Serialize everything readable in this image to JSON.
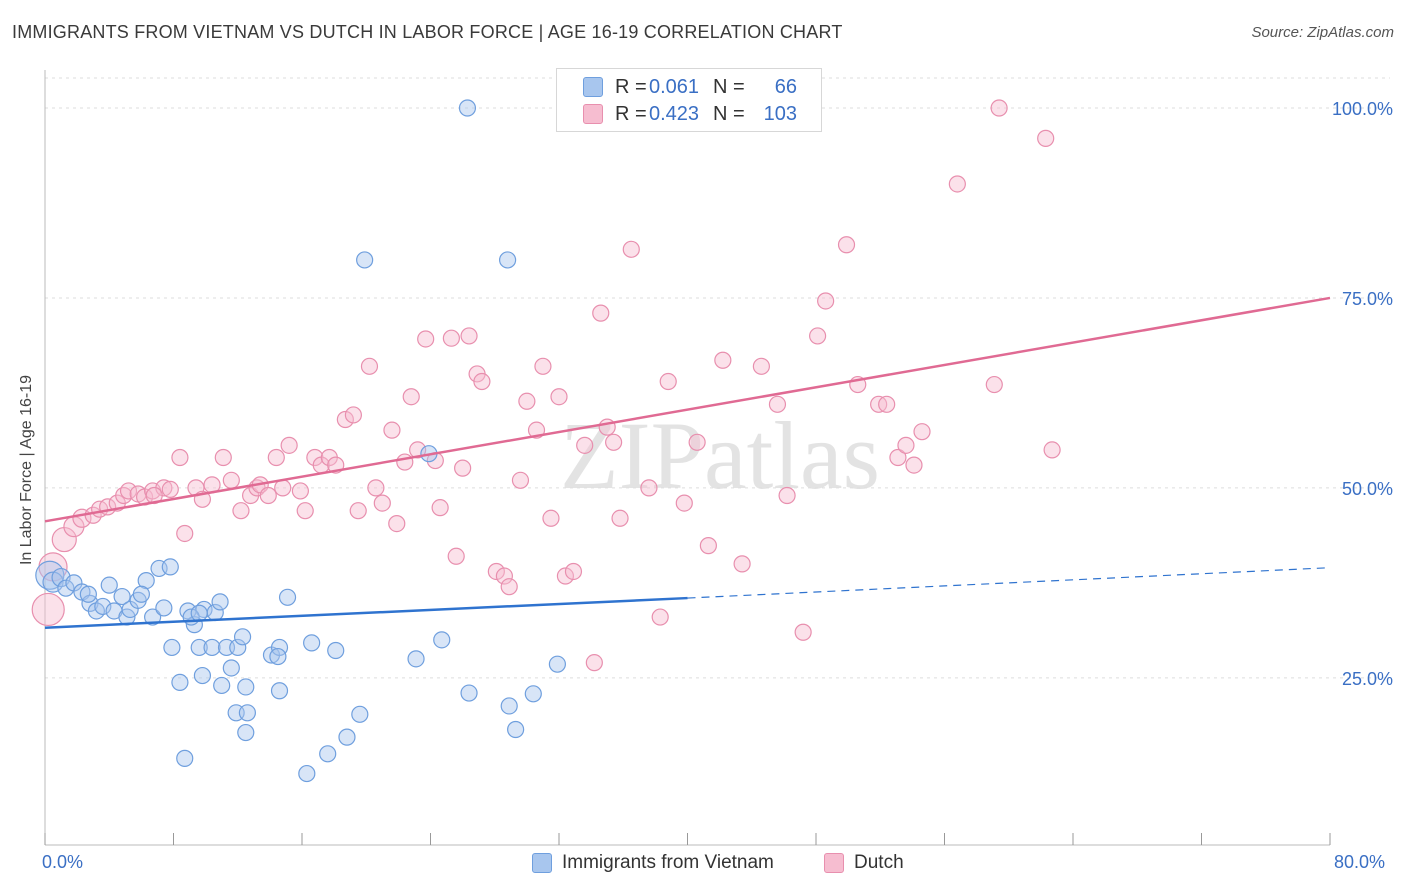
{
  "header": {
    "title": "IMMIGRANTS FROM VIETNAM VS DUTCH IN LABOR FORCE | AGE 16-19 CORRELATION CHART",
    "source": "Source: ZipAtlas.com"
  },
  "watermark": "ZIPatlas",
  "legend": {
    "rows": [
      {
        "r_label": "R =",
        "r_value": "0.061",
        "n_label": "N =",
        "n_value": "66"
      },
      {
        "r_label": "R =",
        "r_value": "0.423",
        "n_label": "N =",
        "n_value": "103"
      }
    ]
  },
  "bottom_legend": {
    "series_a": "Immigrants from Vietnam",
    "series_b": "Dutch"
  },
  "axes": {
    "x_min_label": "0.0%",
    "x_max_label": "80.0%",
    "y_ticks": [
      "25.0%",
      "50.0%",
      "75.0%",
      "100.0%"
    ],
    "y_label": "In Labor Force | Age 16-19"
  },
  "colors": {
    "series_a_fill": "#a8c6ee",
    "series_a_stroke": "#6f9fde",
    "series_a_line": "#2f73cf",
    "series_b_fill": "#f6bdd0",
    "series_b_stroke": "#e88fae",
    "series_b_line": "#e06a93",
    "accent_text": "#3a6fc4",
    "grid": "#dddddd"
  },
  "chart_data": {
    "type": "scatter",
    "title": "IMMIGRANTS FROM VIETNAM VS DUTCH IN LABOR FORCE | AGE 16-19 CORRELATION CHART",
    "xlabel": "",
    "ylabel": "In Labor Force | Age 16-19",
    "xlim": [
      0,
      80
    ],
    "ylim": [
      3,
      105
    ],
    "y_ticks": [
      25,
      50,
      75,
      100
    ],
    "grid": true,
    "legend_position": "top-center",
    "series": [
      {
        "name": "Immigrants from Vietnam",
        "r": 0.061,
        "n": 66,
        "trend": {
          "x0": 0,
          "y0": 31.6,
          "x1": 40,
          "y1": 35.5,
          "dashed_to_x": 80,
          "dashed_to_y": 39.5
        },
        "points": [
          [
            0.3,
            38.5,
            14
          ],
          [
            0.5,
            37.6,
            10
          ],
          [
            1.0,
            38.2,
            9
          ],
          [
            1.3,
            36.8,
            8
          ],
          [
            1.8,
            37.5,
            8
          ],
          [
            2.3,
            36.3,
            8
          ],
          [
            2.8,
            34.8,
            8
          ],
          [
            3.2,
            33.8,
            8
          ],
          [
            2.7,
            36.0,
            8
          ],
          [
            4.0,
            37.2,
            8
          ],
          [
            3.6,
            34.4,
            8
          ],
          [
            4.3,
            33.8,
            8
          ],
          [
            4.8,
            35.7,
            8
          ],
          [
            5.1,
            33.0,
            8
          ],
          [
            5.3,
            34.0,
            8
          ],
          [
            5.8,
            35.2,
            8
          ],
          [
            6.3,
            37.8,
            8
          ],
          [
            6.0,
            36.0,
            8
          ],
          [
            7.1,
            39.4,
            8
          ],
          [
            7.8,
            39.6,
            8
          ],
          [
            6.7,
            33.0,
            8
          ],
          [
            7.4,
            34.2,
            8
          ],
          [
            8.9,
            33.8,
            8
          ],
          [
            9.3,
            32.0,
            8
          ],
          [
            9.9,
            34.0,
            8
          ],
          [
            10.6,
            33.6,
            8
          ],
          [
            10.9,
            35.0,
            8
          ],
          [
            9.1,
            33.0,
            8
          ],
          [
            7.9,
            29.0,
            8
          ],
          [
            9.6,
            29.0,
            8
          ],
          [
            10.4,
            29.0,
            8
          ],
          [
            11.3,
            29.0,
            8
          ],
          [
            12.0,
            29.0,
            8
          ],
          [
            12.3,
            30.4,
            8
          ],
          [
            11.6,
            26.3,
            8
          ],
          [
            8.4,
            24.4,
            8
          ],
          [
            9.8,
            25.3,
            8
          ],
          [
            11.0,
            24.0,
            8
          ],
          [
            12.5,
            23.8,
            8
          ],
          [
            11.9,
            20.4,
            8
          ],
          [
            12.6,
            20.4,
            8
          ],
          [
            14.1,
            28.0,
            8
          ],
          [
            14.6,
            29.0,
            8
          ],
          [
            14.5,
            27.8,
            8
          ],
          [
            14.6,
            23.3,
            8
          ],
          [
            15.1,
            35.6,
            8
          ],
          [
            16.6,
            29.6,
            8
          ],
          [
            18.1,
            28.6,
            8
          ],
          [
            19.6,
            20.2,
            8
          ],
          [
            17.6,
            15.0,
            8
          ],
          [
            16.3,
            12.4,
            8
          ],
          [
            18.8,
            17.2,
            8
          ],
          [
            12.5,
            17.8,
            8
          ],
          [
            8.7,
            14.4,
            8
          ],
          [
            23.1,
            27.5,
            8
          ],
          [
            24.7,
            30.0,
            8
          ],
          [
            26.4,
            23.0,
            8
          ],
          [
            28.9,
            21.3,
            8
          ],
          [
            29.3,
            18.2,
            8
          ],
          [
            30.4,
            22.9,
            8
          ],
          [
            31.9,
            26.8,
            8
          ],
          [
            23.9,
            54.5,
            8
          ],
          [
            19.9,
            80.0,
            8
          ],
          [
            28.8,
            80.0,
            8
          ],
          [
            26.3,
            100.0,
            8
          ],
          [
            9.6,
            33.5,
            8
          ]
        ]
      },
      {
        "name": "Dutch",
        "r": 0.423,
        "n": 103,
        "trend": {
          "x0": 0,
          "y0": 45.6,
          "x1": 80,
          "y1": 75.0
        },
        "points": [
          [
            0.2,
            34.0,
            16
          ],
          [
            0.5,
            39.6,
            14
          ],
          [
            1.2,
            43.2,
            12
          ],
          [
            1.8,
            44.9,
            10
          ],
          [
            2.3,
            46.0,
            9
          ],
          [
            3.0,
            46.4,
            8
          ],
          [
            3.4,
            47.2,
            8
          ],
          [
            3.9,
            47.5,
            8
          ],
          [
            4.5,
            48.0,
            8
          ],
          [
            4.9,
            49.0,
            8
          ],
          [
            5.2,
            49.6,
            8
          ],
          [
            5.8,
            49.2,
            8
          ],
          [
            6.2,
            48.8,
            8
          ],
          [
            6.7,
            49.6,
            8
          ],
          [
            7.4,
            50.0,
            8
          ],
          [
            6.8,
            49.0,
            8
          ],
          [
            7.8,
            49.8,
            8
          ],
          [
            8.4,
            54.0,
            8
          ],
          [
            8.7,
            44.0,
            8
          ],
          [
            9.4,
            50.0,
            8
          ],
          [
            9.8,
            48.5,
            8
          ],
          [
            10.4,
            50.4,
            8
          ],
          [
            11.1,
            54.0,
            8
          ],
          [
            11.6,
            51.0,
            8
          ],
          [
            12.2,
            47.0,
            8
          ],
          [
            12.8,
            49.0,
            8
          ],
          [
            13.2,
            50.0,
            8
          ],
          [
            13.4,
            50.4,
            8
          ],
          [
            13.9,
            49.0,
            8
          ],
          [
            14.4,
            54.0,
            8
          ],
          [
            14.8,
            50.0,
            8
          ],
          [
            15.2,
            55.6,
            8
          ],
          [
            15.9,
            49.6,
            8
          ],
          [
            16.2,
            47.0,
            8
          ],
          [
            16.8,
            54.0,
            8
          ],
          [
            17.2,
            53.0,
            8
          ],
          [
            17.7,
            54.0,
            8
          ],
          [
            18.1,
            53.0,
            8
          ],
          [
            18.7,
            59.0,
            8
          ],
          [
            19.2,
            59.6,
            8
          ],
          [
            19.5,
            47.0,
            8
          ],
          [
            20.2,
            66.0,
            8
          ],
          [
            20.6,
            50.0,
            8
          ],
          [
            21.0,
            48.0,
            8
          ],
          [
            21.6,
            57.6,
            8
          ],
          [
            21.9,
            45.3,
            8
          ],
          [
            22.4,
            53.4,
            8
          ],
          [
            22.8,
            62.0,
            8
          ],
          [
            23.2,
            55.0,
            8
          ],
          [
            23.7,
            69.6,
            8
          ],
          [
            24.3,
            53.6,
            8
          ],
          [
            24.6,
            47.4,
            8
          ],
          [
            25.3,
            69.7,
            8
          ],
          [
            25.6,
            41.0,
            8
          ],
          [
            26.0,
            52.6,
            8
          ],
          [
            26.4,
            70.0,
            8
          ],
          [
            26.9,
            65.0,
            8
          ],
          [
            27.2,
            64.0,
            8
          ],
          [
            28.1,
            39.0,
            8
          ],
          [
            28.6,
            38.4,
            8
          ],
          [
            28.9,
            37.0,
            8
          ],
          [
            29.6,
            51.0,
            8
          ],
          [
            30.0,
            61.4,
            8
          ],
          [
            30.6,
            57.6,
            8
          ],
          [
            31.0,
            66.0,
            8
          ],
          [
            31.5,
            46.0,
            8
          ],
          [
            32.0,
            62.0,
            8
          ],
          [
            32.4,
            38.4,
            8
          ],
          [
            32.9,
            39.0,
            8
          ],
          [
            33.6,
            55.6,
            8
          ],
          [
            34.2,
            27.0,
            8
          ],
          [
            34.6,
            73.0,
            8
          ],
          [
            35.0,
            58.0,
            8
          ],
          [
            35.4,
            56.0,
            8
          ],
          [
            35.8,
            46.0,
            8
          ],
          [
            36.5,
            81.4,
            8
          ],
          [
            37.6,
            50.0,
            8
          ],
          [
            38.3,
            33.0,
            8
          ],
          [
            38.8,
            64.0,
            8
          ],
          [
            39.8,
            48.0,
            8
          ],
          [
            40.6,
            56.0,
            8
          ],
          [
            41.3,
            42.4,
            8
          ],
          [
            42.2,
            66.8,
            8
          ],
          [
            43.4,
            40.0,
            8
          ],
          [
            44.6,
            66.0,
            8
          ],
          [
            45.6,
            61.0,
            8
          ],
          [
            46.2,
            49.0,
            8
          ],
          [
            47.2,
            31.0,
            8
          ],
          [
            48.1,
            70.0,
            8
          ],
          [
            48.6,
            74.6,
            8
          ],
          [
            49.9,
            82.0,
            8
          ],
          [
            50.6,
            63.6,
            8
          ],
          [
            51.9,
            61.0,
            8
          ],
          [
            52.4,
            61.0,
            8
          ],
          [
            53.1,
            54.0,
            8
          ],
          [
            53.6,
            55.6,
            8
          ],
          [
            54.1,
            53.0,
            8
          ],
          [
            54.6,
            57.4,
            8
          ],
          [
            56.8,
            90.0,
            8
          ],
          [
            59.1,
            63.6,
            8
          ],
          [
            59.4,
            100.0,
            8
          ],
          [
            62.7,
            55.0,
            8
          ],
          [
            62.3,
            96.0,
            8
          ]
        ]
      }
    ]
  }
}
